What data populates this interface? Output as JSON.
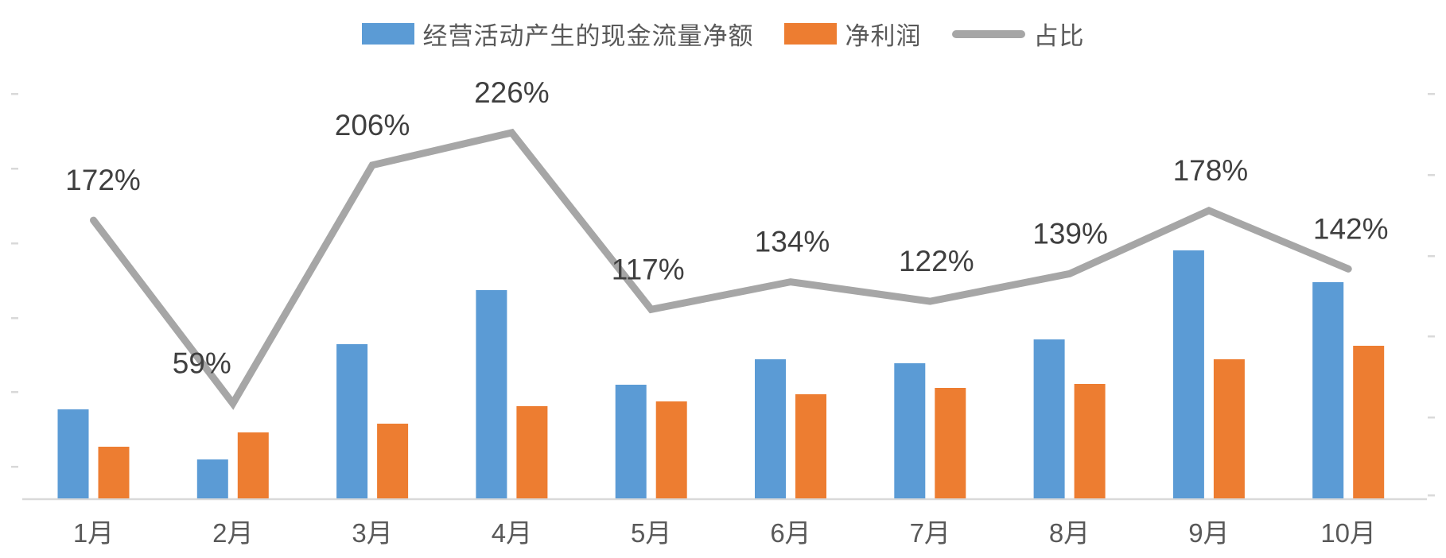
{
  "chart_data": {
    "type": "combo_bar_line",
    "title": "",
    "xlabel": "",
    "ylabel": "",
    "categories": [
      "1月",
      "2月",
      "3月",
      "4月",
      "5月",
      "6月",
      "7月",
      "8月",
      "9月",
      "10月"
    ],
    "series": [
      {
        "name": "经营活动产生的现金流量净额",
        "type": "bar",
        "color": "#5B9BD5",
        "values": [
          1.12,
          0.49,
          1.94,
          2.62,
          1.43,
          1.75,
          1.7,
          2.0,
          3.12,
          2.72
        ]
      },
      {
        "name": "净利润",
        "type": "bar",
        "color": "#ED7D31",
        "values": [
          0.65,
          0.83,
          0.94,
          1.16,
          1.22,
          1.31,
          1.39,
          1.44,
          1.75,
          1.92
        ]
      },
      {
        "name": "占比",
        "type": "line",
        "color": "#A6A6A6",
        "values_pct": [
          172,
          59,
          206,
          226,
          117,
          134,
          122,
          139,
          178,
          142
        ],
        "labels": [
          "172%",
          "59%",
          "206%",
          "226%",
          "117%",
          "134%",
          "122%",
          "139%",
          "178%",
          "142%"
        ]
      }
    ],
    "legend_position": "top",
    "grid": false,
    "value_axis_labels_visible": false,
    "note_axis": "left and right value axes show only small unlabeled tick dashes",
    "colors": {
      "axis_line": "#D9D9D9",
      "tick": "#C9C9C9",
      "data_label": "#3F3F3F",
      "category_label": "#595959",
      "background": "#FFFFFF"
    }
  },
  "legend": {
    "items": [
      {
        "label": "经营活动产生的现金流量净额",
        "marker": "bar",
        "color": "#5B9BD5"
      },
      {
        "label": "净利润",
        "marker": "bar",
        "color": "#ED7D31"
      },
      {
        "label": "占比",
        "marker": "line",
        "color": "#A6A6A6"
      }
    ]
  }
}
